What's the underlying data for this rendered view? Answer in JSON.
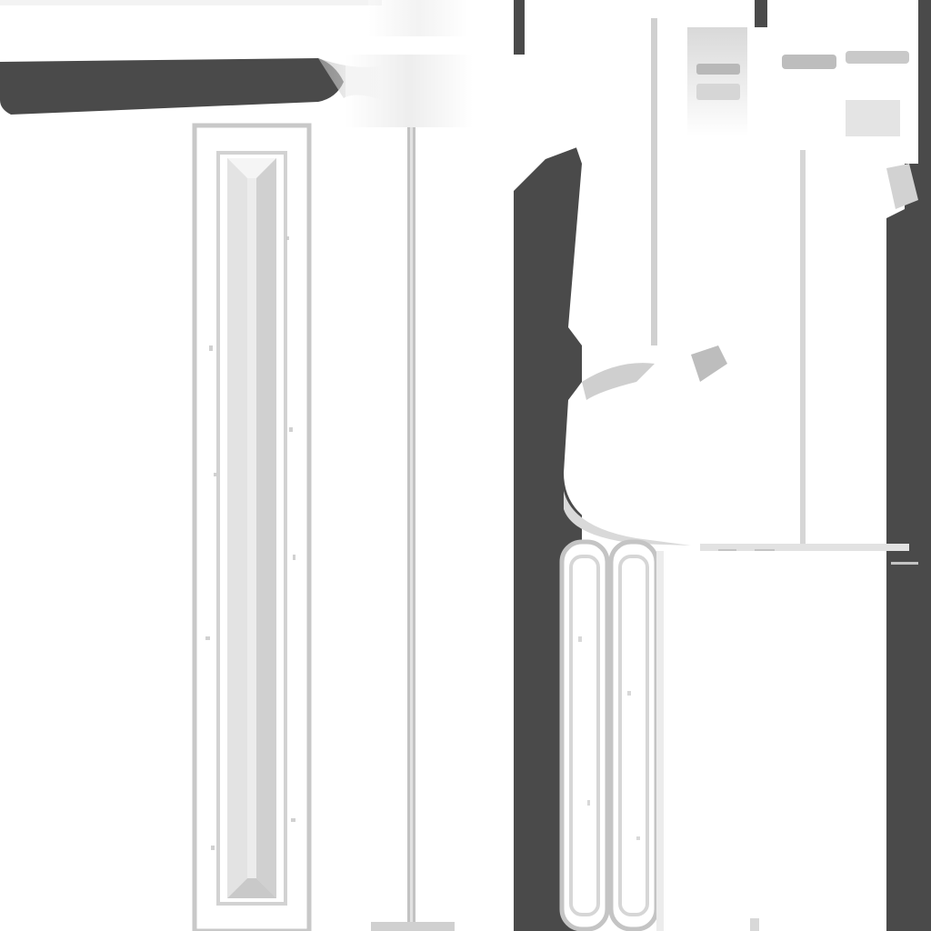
{
  "texture": {
    "description_visible_text": "",
    "colors": {
      "background": "#ffffff",
      "dark_fill": "#4a4a4a",
      "light_gray": "#d6d6d6",
      "mid_gray": "#b8b8b8",
      "panel_fill": "#e6e6e6",
      "edge_gray": "#c4c4c4"
    }
  }
}
